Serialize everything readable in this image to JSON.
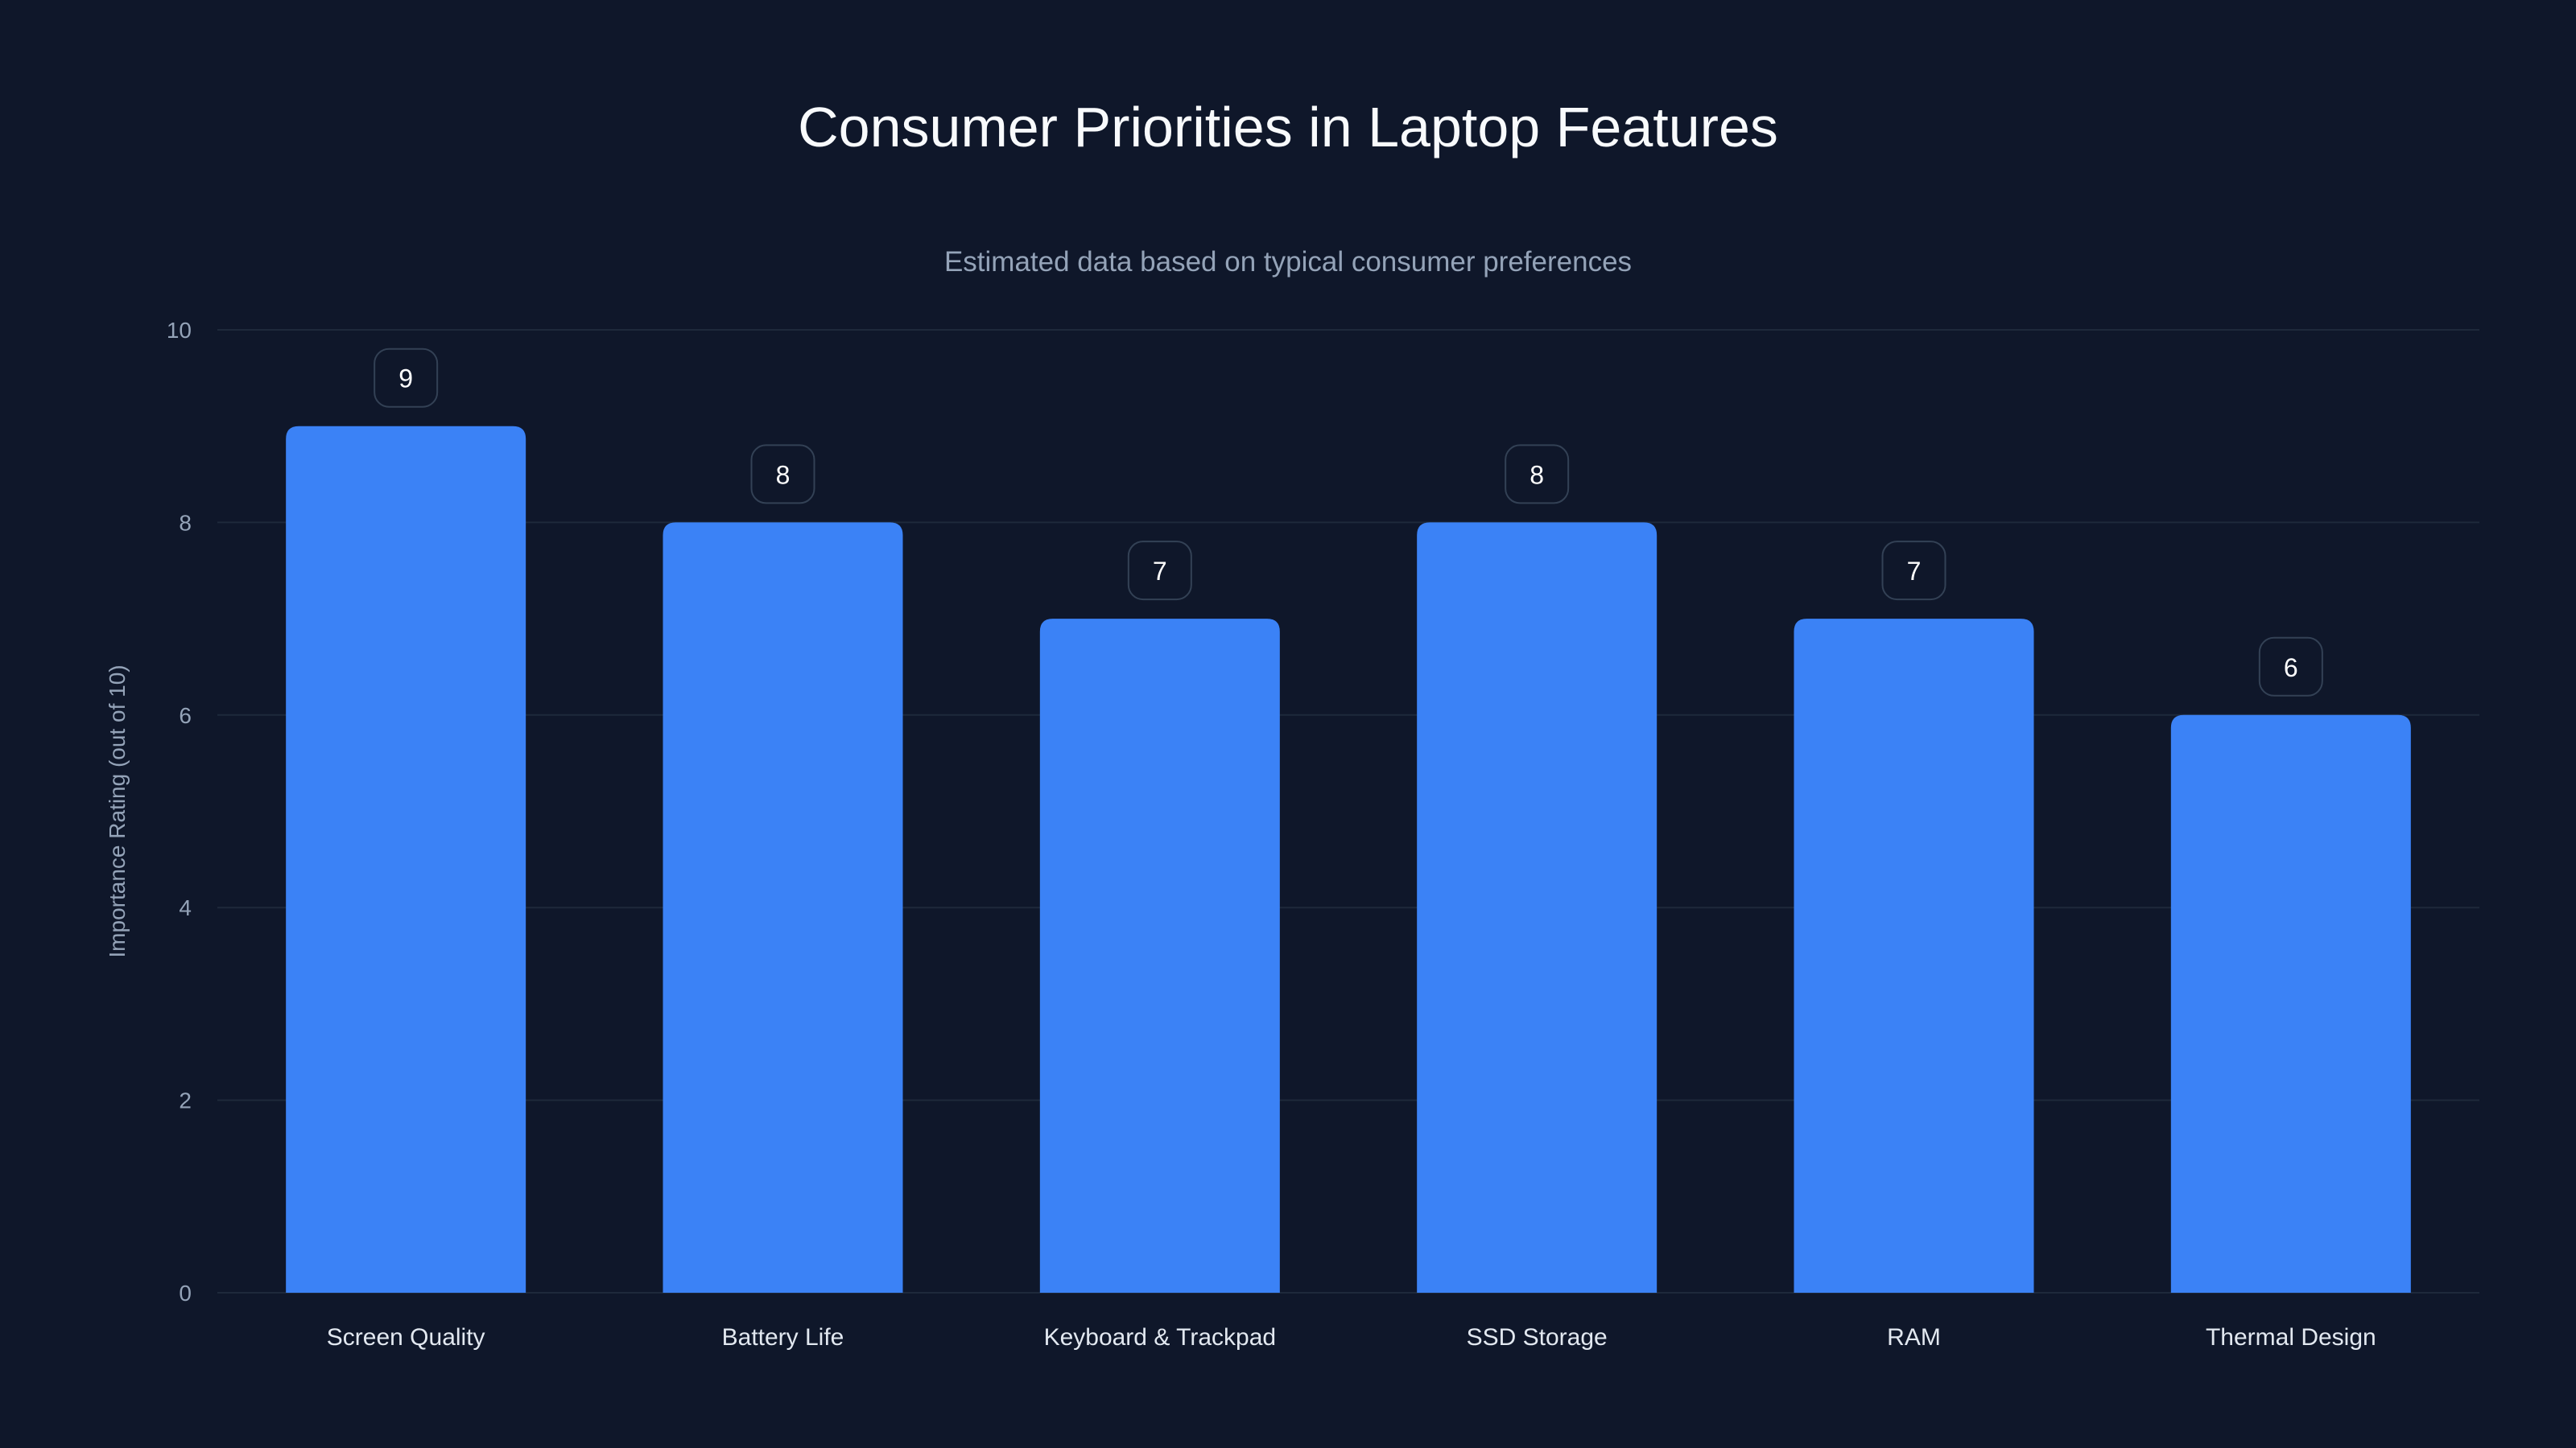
{
  "chart_data": {
    "type": "bar",
    "title": "Consumer Priorities in Laptop Features",
    "subtitle": "Estimated data based on typical consumer preferences",
    "xlabel": "",
    "ylabel": "Importance Rating (out of 10)",
    "ylim": [
      0,
      10
    ],
    "yticks": [
      0,
      2,
      4,
      6,
      8,
      10
    ],
    "grid": true,
    "categories": [
      "Screen Quality",
      "Battery Life",
      "Keyboard & Trackpad",
      "SSD Storage",
      "RAM",
      "Thermal Design"
    ],
    "values": [
      9,
      8,
      7,
      8,
      7,
      6
    ],
    "colors": {
      "background": "#0f172a",
      "bar": "#3b82f6",
      "grid": "#1e293b",
      "tick": "#94a3b8",
      "label": "#e2e8f0",
      "badge_border": "#334155"
    }
  }
}
